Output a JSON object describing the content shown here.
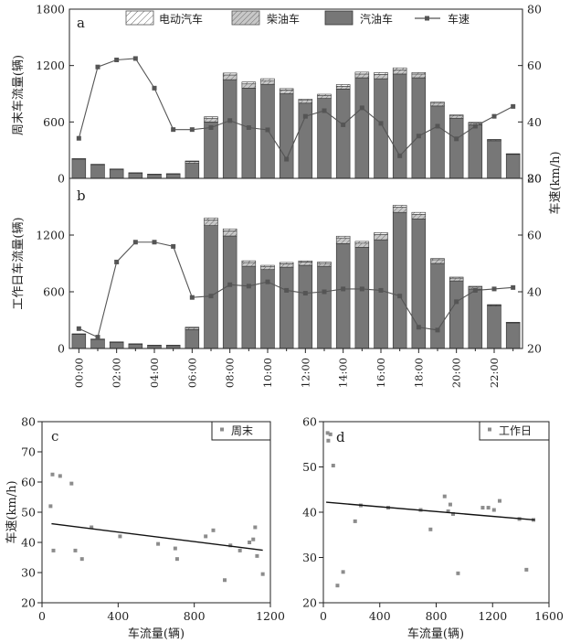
{
  "chart_data": [
    {
      "id": "a",
      "type": "bar",
      "panel_label": "a",
      "title": "",
      "ylabel": "周末车流量(辆)",
      "y2label": "",
      "ylim": [
        0,
        1800
      ],
      "y2lim": [
        20,
        80
      ],
      "yticks": [
        0,
        600,
        1200,
        1800
      ],
      "y2ticks": [
        20,
        40,
        60,
        80
      ],
      "legend": {
        "placement": "top",
        "entries": [
          "电动汽车",
          "柴油车",
          "汽油车",
          "车速"
        ]
      },
      "categories": [
        "00:00",
        "01:00",
        "02:00",
        "03:00",
        "04:00",
        "05:00",
        "06:00",
        "07:00",
        "08:00",
        "09:00",
        "10:00",
        "11:00",
        "12:00",
        "13:00",
        "14:00",
        "15:00",
        "16:00",
        "17:00",
        "18:00",
        "19:00",
        "20:00",
        "21:00",
        "22:00",
        "23:00"
      ],
      "series": [
        {
          "name": "汽油车",
          "kind": "bar",
          "values": [
            205,
            145,
            95,
            55,
            40,
            45,
            160,
            600,
            1050,
            960,
            1000,
            900,
            800,
            850,
            950,
            1070,
            1060,
            1110,
            1070,
            770,
            640,
            570,
            400,
            255
          ]
        },
        {
          "name": "柴油车",
          "kind": "bar",
          "values": [
            3,
            3,
            3,
            3,
            3,
            3,
            20,
            40,
            50,
            45,
            40,
            40,
            30,
            30,
            30,
            40,
            45,
            45,
            40,
            30,
            25,
            18,
            10,
            5
          ]
        },
        {
          "name": "电动汽车",
          "kind": "bar",
          "values": [
            2,
            2,
            2,
            2,
            2,
            2,
            5,
            15,
            20,
            20,
            20,
            15,
            12,
            15,
            18,
            20,
            20,
            20,
            15,
            12,
            10,
            8,
            4,
            2
          ]
        },
        {
          "name": "车速",
          "kind": "line",
          "axis": "y2",
          "values": [
            34.2,
            59.5,
            62.0,
            62.5,
            52.0,
            37.3,
            37.3,
            38.0,
            40.5,
            38.0,
            37.2,
            26.8,
            42.0,
            44.0,
            39.0,
            45.0,
            39.5,
            28.0,
            35.0,
            38.5,
            34.0,
            38.5,
            42.0,
            45.5
          ]
        }
      ]
    },
    {
      "id": "b",
      "type": "bar",
      "panel_label": "b",
      "title": "",
      "ylabel": "工作日车流量(辆)",
      "y2label": "车速(km/h)",
      "xlabel": "",
      "ylim": [
        0,
        1800
      ],
      "y2lim": [
        20,
        80
      ],
      "yticks": [
        0,
        600,
        1200
      ],
      "y2ticks": [
        20,
        40,
        60,
        80
      ],
      "xtick_labels": [
        "00:00",
        "02:00",
        "04:00",
        "06:00",
        "08:00",
        "10:00",
        "12:00",
        "14:00",
        "16:00",
        "18:00",
        "20:00",
        "22:00"
      ],
      "categories": [
        "00:00",
        "01:00",
        "02:00",
        "03:00",
        "04:00",
        "05:00",
        "06:00",
        "07:00",
        "08:00",
        "09:00",
        "10:00",
        "11:00",
        "12:00",
        "13:00",
        "14:00",
        "15:00",
        "16:00",
        "17:00",
        "18:00",
        "19:00",
        "20:00",
        "21:00",
        "22:00",
        "23:00"
      ],
      "series": [
        {
          "name": "汽油车",
          "kind": "bar",
          "values": [
            150,
            95,
            65,
            45,
            30,
            30,
            200,
            1300,
            1190,
            870,
            835,
            860,
            880,
            870,
            1110,
            1070,
            1150,
            1440,
            1370,
            900,
            715,
            630,
            450,
            270
          ]
        },
        {
          "name": "柴油车",
          "kind": "bar",
          "values": [
            3,
            3,
            3,
            3,
            3,
            3,
            20,
            60,
            55,
            40,
            30,
            35,
            35,
            30,
            60,
            45,
            55,
            55,
            50,
            40,
            30,
            20,
            10,
            5
          ]
        },
        {
          "name": "电动汽车",
          "kind": "bar",
          "values": [
            2,
            2,
            2,
            2,
            2,
            2,
            5,
            20,
            20,
            18,
            15,
            15,
            12,
            15,
            18,
            18,
            20,
            20,
            20,
            12,
            10,
            8,
            4,
            2
          ]
        },
        {
          "name": "车速",
          "kind": "line",
          "axis": "y2",
          "values": [
            27.0,
            24.0,
            50.5,
            57.5,
            57.5,
            56.0,
            38.0,
            38.5,
            42.5,
            42.0,
            43.5,
            40.5,
            39.5,
            40.0,
            41.0,
            41.0,
            40.5,
            38.5,
            27.5,
            26.5,
            36.5,
            40.5,
            41.0,
            41.5
          ]
        }
      ]
    },
    {
      "id": "c",
      "type": "scatter",
      "panel_label": "c",
      "title": "",
      "xlabel": "车流量(辆)",
      "ylabel": "车速(km/h)",
      "xlim": [
        0,
        1200
      ],
      "ylim": [
        20,
        80
      ],
      "xticks": [
        0,
        400,
        800,
        1200
      ],
      "yticks": [
        20,
        30,
        40,
        50,
        60,
        70,
        80
      ],
      "legend": {
        "placement": "top-right",
        "entries": [
          "周末"
        ]
      },
      "points": [
        [
          45,
          52
        ],
        [
          55,
          62.5
        ],
        [
          60,
          37.3
        ],
        [
          95,
          62
        ],
        [
          155,
          59.5
        ],
        [
          175,
          37.3
        ],
        [
          210,
          34.5
        ],
        [
          260,
          45
        ],
        [
          410,
          42
        ],
        [
          610,
          39.5
        ],
        [
          700,
          38
        ],
        [
          710,
          34.5
        ],
        [
          860,
          42
        ],
        [
          900,
          44
        ],
        [
          960,
          27.5
        ],
        [
          990,
          39
        ],
        [
          1040,
          37.3
        ],
        [
          1090,
          40
        ],
        [
          1110,
          41
        ],
        [
          1120,
          45
        ],
        [
          1130,
          35.5
        ],
        [
          1160,
          29.5
        ]
      ],
      "fit_line": {
        "x": [
          50,
          1160
        ],
        "y": [
          46.2,
          37.4
        ]
      }
    },
    {
      "id": "d",
      "type": "scatter",
      "panel_label": "d",
      "title": "",
      "xlabel": "车流量(辆)",
      "ylabel": "",
      "xlim": [
        0,
        1600
      ],
      "ylim": [
        20,
        60
      ],
      "xticks": [
        0,
        400,
        800,
        1200,
        1600
      ],
      "yticks": [
        20,
        30,
        40,
        50,
        60
      ],
      "legend": {
        "placement": "top-right",
        "entries": [
          "工作日"
        ]
      },
      "points": [
        [
          30,
          57.5
        ],
        [
          35,
          55.8
        ],
        [
          50,
          57.2
        ],
        [
          70,
          50.3
        ],
        [
          100,
          23.8
        ],
        [
          140,
          26.8
        ],
        [
          225,
          38
        ],
        [
          265,
          41.5
        ],
        [
          460,
          41
        ],
        [
          690,
          40.5
        ],
        [
          760,
          36.2
        ],
        [
          860,
          43.5
        ],
        [
          885,
          40.2
        ],
        [
          900,
          41.7
        ],
        [
          920,
          39.6
        ],
        [
          955,
          26.5
        ],
        [
          1130,
          41
        ],
        [
          1170,
          41
        ],
        [
          1210,
          40.5
        ],
        [
          1250,
          42.5
        ],
        [
          1390,
          38.5
        ],
        [
          1440,
          27.3
        ],
        [
          1490,
          38.3
        ]
      ],
      "fit_line": {
        "x": [
          20,
          1500
        ],
        "y": [
          42.2,
          38.3
        ]
      }
    }
  ]
}
